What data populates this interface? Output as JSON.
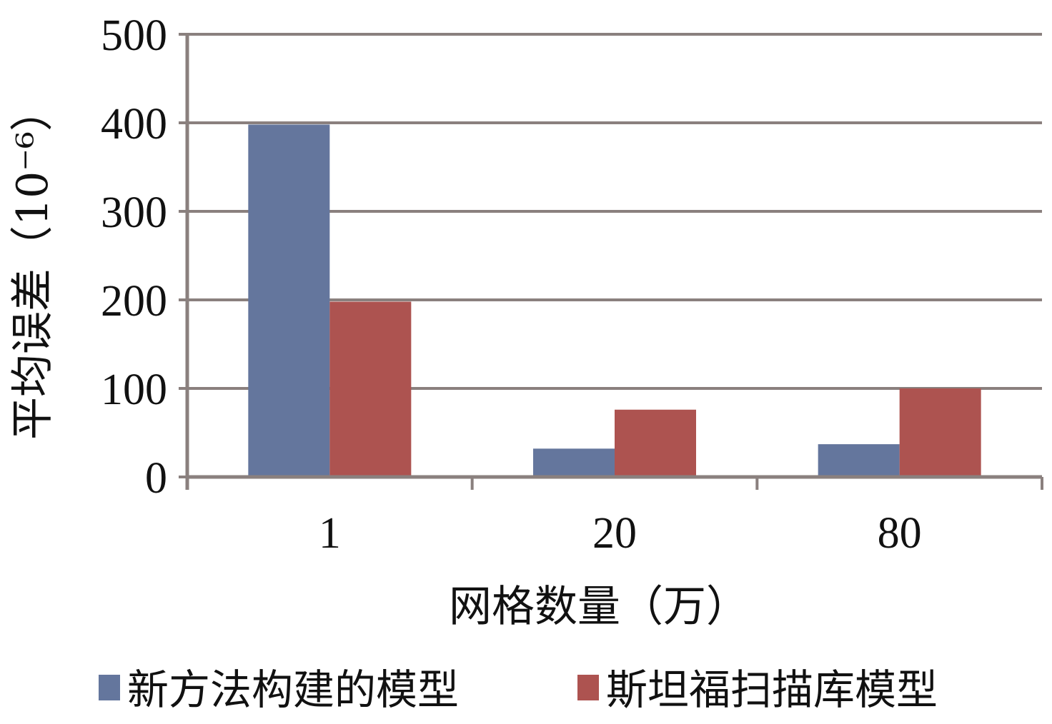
{
  "chart_data": {
    "type": "bar",
    "title": "",
    "categories": [
      "1",
      "20",
      "80"
    ],
    "series": [
      {
        "name": "新方法构建的模型",
        "values": [
          398,
          32,
          37
        ],
        "color": "#64769d"
      },
      {
        "name": "斯坦福扫描库模型",
        "values": [
          198,
          76,
          100
        ],
        "color": "#ad5350"
      }
    ],
    "xlabel": "网格数量（万）",
    "ylabel": "平均误差（10⁻⁶）",
    "ylim": [
      0,
      500
    ],
    "yticks": [
      0,
      100,
      200,
      300,
      400,
      500
    ],
    "grid": true,
    "legend": "bottom",
    "colors": {
      "grid": "#8a807e",
      "text": "#111111"
    }
  }
}
